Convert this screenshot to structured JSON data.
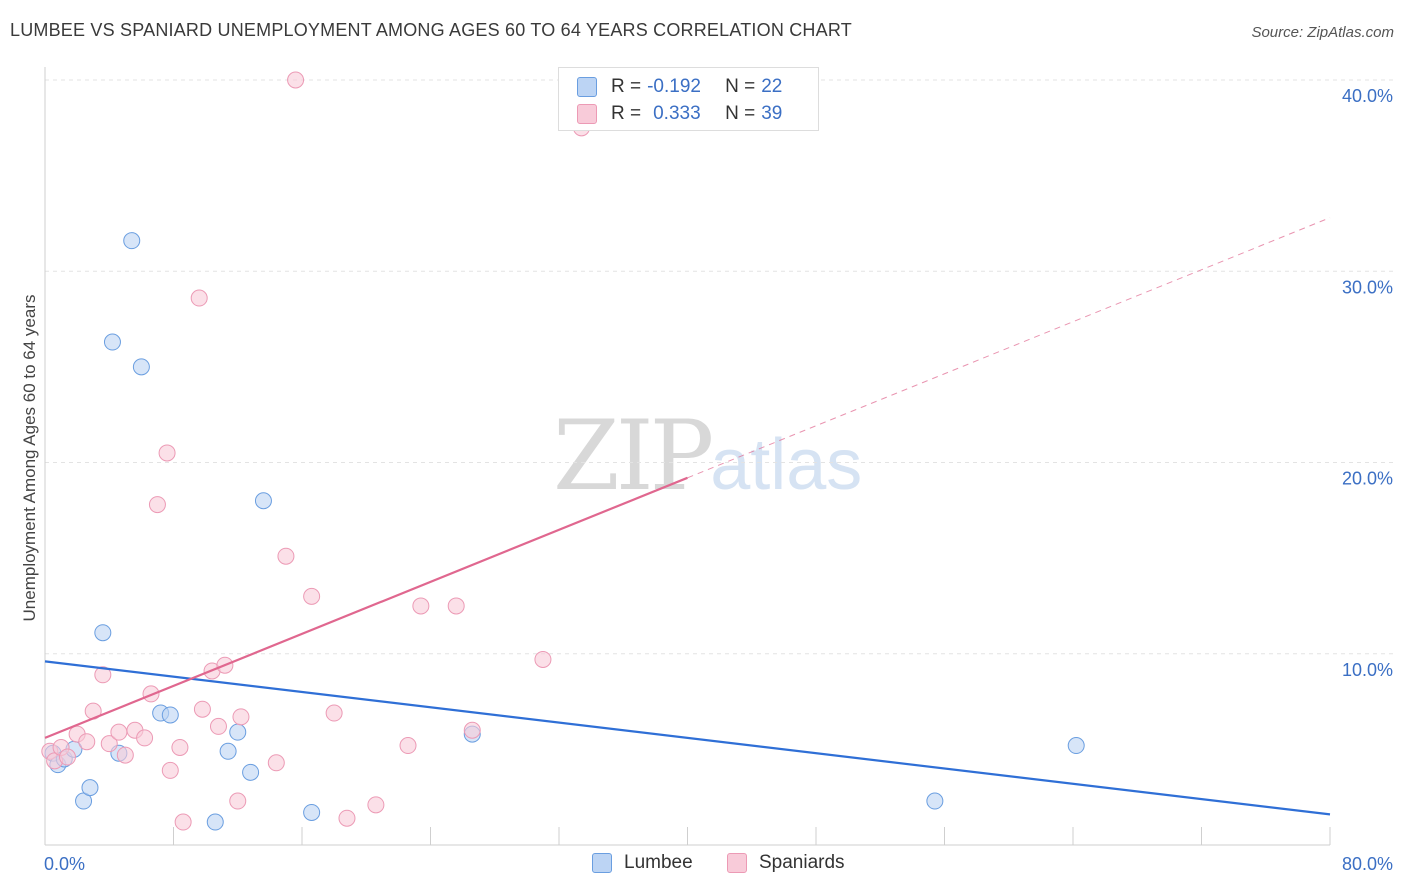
{
  "header": {
    "title": "LUMBEE VS SPANIARD UNEMPLOYMENT AMONG AGES 60 TO 64 YEARS CORRELATION CHART",
    "source": "Source: ZipAtlas.com"
  },
  "watermark": {
    "zip": "ZIP",
    "atlas": "atlas"
  },
  "legend": {
    "rows": [
      {
        "r_label": "R =",
        "r_value": "-0.192",
        "n_label": "N =",
        "n_value": "22",
        "color": "#a9c7f2"
      },
      {
        "r_label": "R =",
        "r_value": "0.333",
        "n_label": "N =",
        "n_value": "39",
        "color": "#f6b7cb"
      }
    ]
  },
  "bottom_legend": {
    "items": [
      {
        "label": "Lumbee"
      },
      {
        "label": "Spaniards"
      }
    ]
  },
  "chart_data": {
    "type": "scatter",
    "title": "LUMBEE VS SPANIARD UNEMPLOYMENT AMONG AGES 60 TO 64 YEARS CORRELATION CHART",
    "ylabel": "Unemployment Among Ages 60 to 64 years",
    "xlabel": "",
    "xlim": [
      0,
      80
    ],
    "ylim": [
      0,
      40
    ],
    "x_tick_labels": [
      {
        "value": 0,
        "label": "0.0%"
      },
      {
        "value": 80,
        "label": "80.0%"
      }
    ],
    "y_tick_labels": [
      {
        "value": 10,
        "label": "10.0%"
      },
      {
        "value": 20,
        "label": "20.0%"
      },
      {
        "value": 30,
        "label": "30.0%"
      },
      {
        "value": 40,
        "label": "40.0%"
      }
    ],
    "x_minor_ticks": [
      0,
      8,
      16,
      24,
      32,
      40,
      48,
      56,
      64,
      72,
      80
    ],
    "grid": true,
    "legend_position": "top-center",
    "series": [
      {
        "name": "Lumbee",
        "color": "#6a9ee0",
        "fill": "#bcd4f4",
        "line_color": "#2f6fd6",
        "trend": {
          "x0": 0,
          "y0": 9.6,
          "x1": 80,
          "y1": 1.6,
          "dashed_from": null
        },
        "points": [
          [
            0.5,
            4.8
          ],
          [
            0.8,
            4.2
          ],
          [
            1.2,
            4.5
          ],
          [
            1.8,
            5.0
          ],
          [
            2.4,
            2.3
          ],
          [
            2.8,
            3.0
          ],
          [
            3.6,
            11.1
          ],
          [
            4.6,
            4.8
          ],
          [
            5.4,
            31.6
          ],
          [
            4.2,
            26.3
          ],
          [
            6.0,
            25.0
          ],
          [
            7.2,
            6.9
          ],
          [
            7.8,
            6.8
          ],
          [
            10.6,
            1.2
          ],
          [
            11.4,
            4.9
          ],
          [
            12.0,
            5.9
          ],
          [
            12.8,
            3.8
          ],
          [
            13.6,
            18.0
          ],
          [
            16.6,
            1.7
          ],
          [
            26.6,
            5.8
          ],
          [
            55.4,
            2.3
          ],
          [
            64.2,
            5.2
          ]
        ]
      },
      {
        "name": "Spaniards",
        "color": "#ec9ab5",
        "fill": "#f8cbd9",
        "line_color": "#e0678f",
        "trend": {
          "x0": 0,
          "y0": 5.6,
          "x1": 80,
          "y1": 32.8,
          "dashed_from": 40
        },
        "points": [
          [
            0.3,
            4.9
          ],
          [
            0.6,
            4.4
          ],
          [
            1.0,
            5.1
          ],
          [
            1.4,
            4.6
          ],
          [
            2.0,
            5.8
          ],
          [
            2.6,
            5.4
          ],
          [
            3.0,
            7.0
          ],
          [
            3.6,
            8.9
          ],
          [
            4.0,
            5.3
          ],
          [
            4.6,
            5.9
          ],
          [
            5.0,
            4.7
          ],
          [
            5.6,
            6.0
          ],
          [
            6.2,
            5.6
          ],
          [
            6.6,
            7.9
          ],
          [
            7.0,
            17.8
          ],
          [
            7.6,
            20.5
          ],
          [
            7.8,
            3.9
          ],
          [
            8.4,
            5.1
          ],
          [
            8.6,
            1.2
          ],
          [
            9.6,
            28.6
          ],
          [
            9.8,
            7.1
          ],
          [
            10.4,
            9.1
          ],
          [
            10.8,
            6.2
          ],
          [
            11.2,
            9.4
          ],
          [
            12.0,
            2.3
          ],
          [
            12.2,
            6.7
          ],
          [
            14.4,
            4.3
          ],
          [
            15.0,
            15.1
          ],
          [
            15.6,
            40.0
          ],
          [
            16.6,
            13.0
          ],
          [
            18.0,
            6.9
          ],
          [
            18.8,
            1.4
          ],
          [
            20.6,
            2.1
          ],
          [
            22.6,
            5.2
          ],
          [
            23.4,
            12.5
          ],
          [
            25.6,
            12.5
          ],
          [
            26.6,
            6.0
          ],
          [
            31.0,
            9.7
          ],
          [
            33.4,
            37.5
          ]
        ]
      }
    ]
  }
}
